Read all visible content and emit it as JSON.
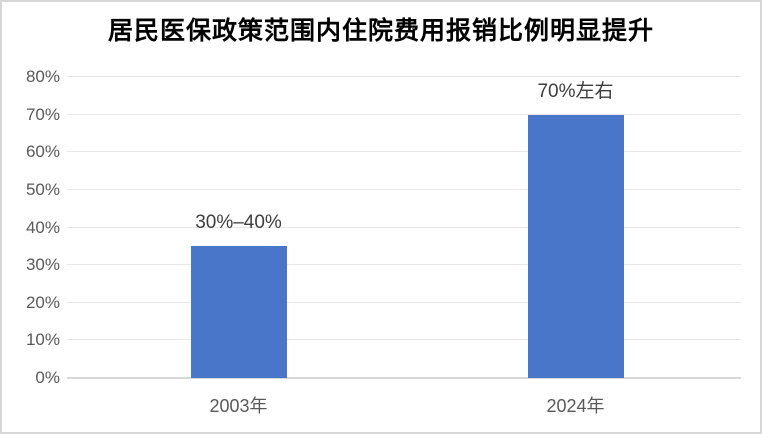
{
  "chart_data": {
    "type": "bar",
    "title": "居民医保政策范围内住院费用报销比例明显提升",
    "categories": [
      "2003年",
      "2024年"
    ],
    "values": [
      35,
      70
    ],
    "data_labels": [
      "30%–40%",
      "70%左右"
    ],
    "xlabel": "",
    "ylabel": "",
    "ylim": [
      0,
      80
    ],
    "ytick_step": 10,
    "ytick_labels": [
      "0%",
      "10%",
      "20%",
      "30%",
      "40%",
      "50%",
      "60%",
      "70%",
      "80%"
    ],
    "grid": true,
    "legend": false
  },
  "colors": {
    "bar": "#4a76c9",
    "gridline": "#e8e8e8",
    "axis_line": "#d8d8d8",
    "tick_label": "#595959",
    "data_label": "#3d3d3d",
    "title": "#000000",
    "frame_border": "#d7d7d7",
    "background": "#ffffff"
  }
}
